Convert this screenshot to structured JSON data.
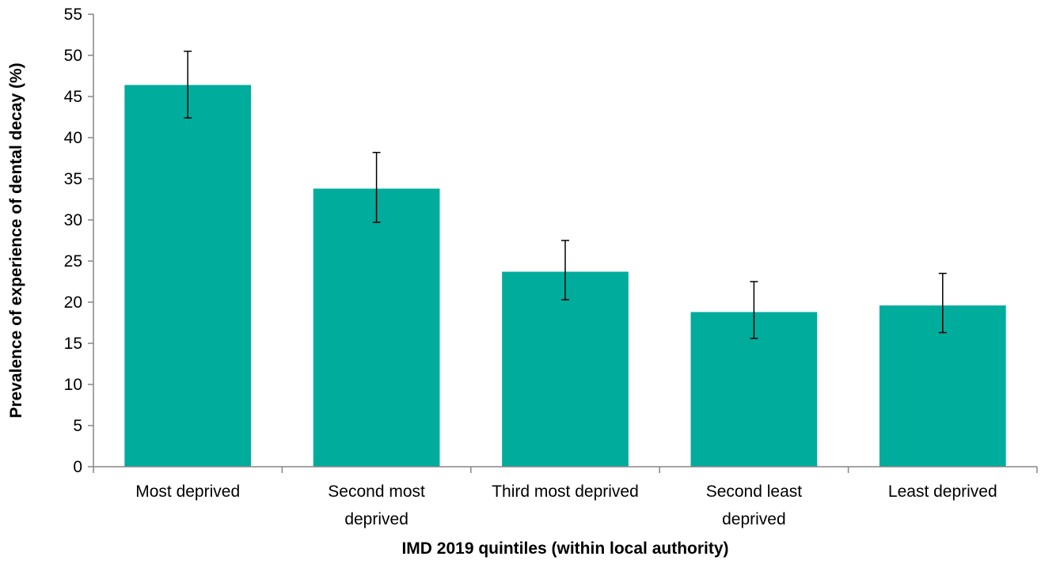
{
  "chart_data": {
    "type": "bar",
    "title": "",
    "xlabel": "IMD 2019 quintiles (within local authority)",
    "ylabel": "Prevalence of experience of dental decay (%)",
    "categories": [
      [
        "Most deprived"
      ],
      [
        "Second most",
        "deprived"
      ],
      [
        "Third most deprived"
      ],
      [
        "Second least",
        "deprived"
      ],
      [
        "Least deprived"
      ]
    ],
    "values": [
      46.4,
      33.8,
      23.7,
      18.8,
      19.6
    ],
    "error_low": [
      42.4,
      29.7,
      20.3,
      15.6,
      16.3
    ],
    "error_high": [
      50.5,
      38.2,
      27.5,
      22.5,
      23.5
    ],
    "ylim": [
      0,
      55
    ],
    "yticks": [
      0,
      5,
      10,
      15,
      20,
      25,
      30,
      35,
      40,
      45,
      50,
      55
    ],
    "grid": false,
    "legend": "none",
    "bar_color": "#00AC9C",
    "errorbar_color": "#000000"
  }
}
